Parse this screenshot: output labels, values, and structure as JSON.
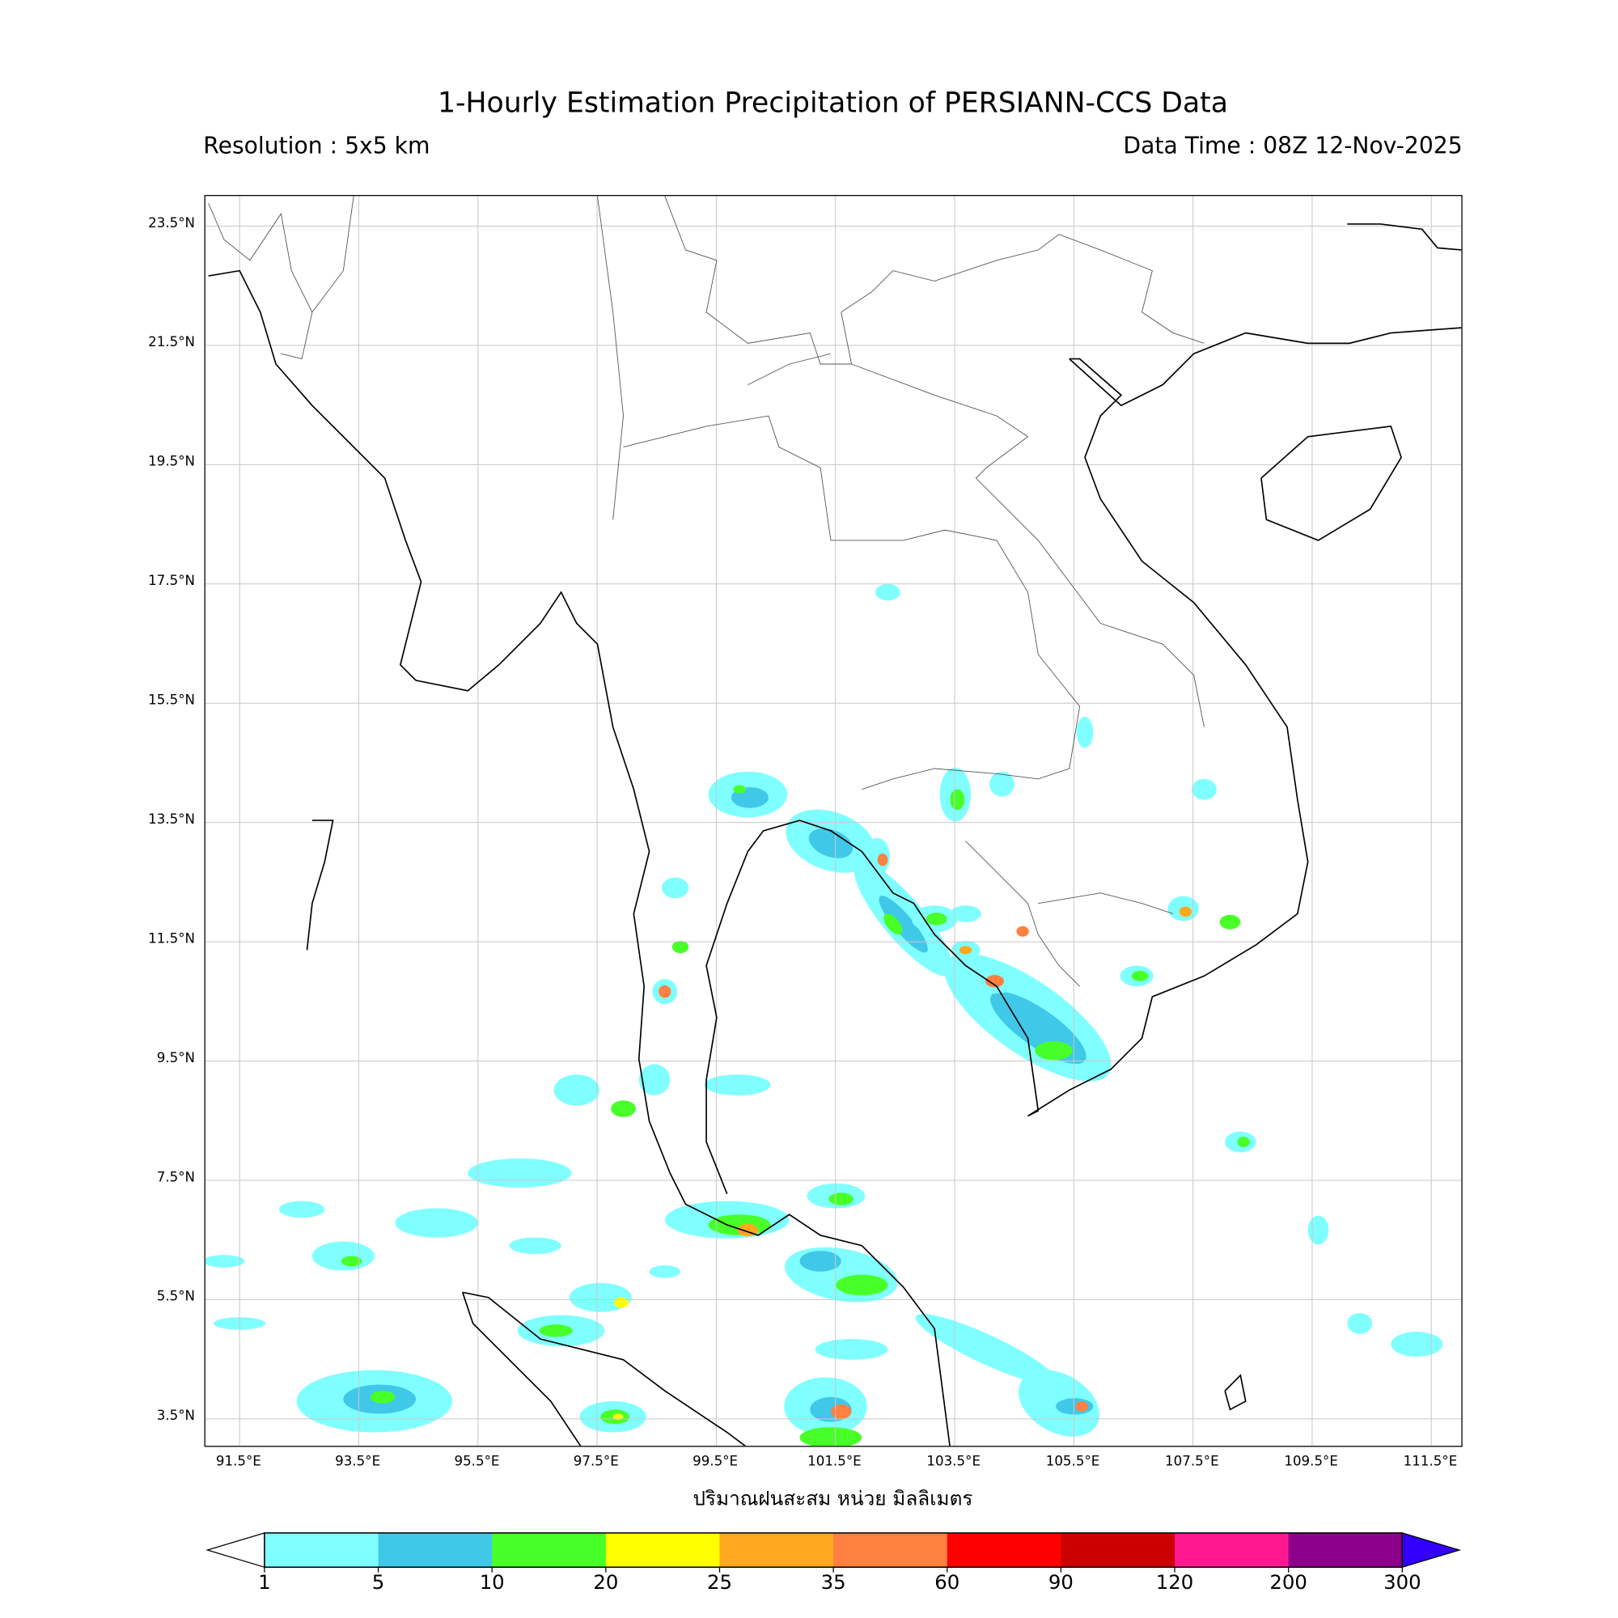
{
  "header": {
    "title": "1-Hourly Estimation Precipitation of PERSIANN-CCS Data",
    "resolution": "Resolution : 5x5 km",
    "data_time": "Data Time : 08Z 12-Nov-2025"
  },
  "map": {
    "lat_ticks": [
      "23.5°N",
      "21.5°N",
      "19.5°N",
      "17.5°N",
      "15.5°N",
      "13.5°N",
      "11.5°N",
      "9.5°N",
      "7.5°N",
      "5.5°N",
      "3.5°N"
    ],
    "lon_ticks": [
      "91.5°E",
      "93.5°E",
      "95.5°E",
      "97.5°E",
      "99.5°E",
      "101.5°E",
      "103.5°E",
      "105.5°E",
      "107.5°E",
      "109.5°E",
      "111.5°E"
    ],
    "lon_range": [
      91,
      112.2
    ],
    "lat_range": [
      2.9,
      24
    ],
    "grid": true
  },
  "colorbar": {
    "label": "ปริมาณฝนสะสม หน่วย มิลลิเมตร",
    "ticks": [
      "1",
      "5",
      "10",
      "20",
      "25",
      "35",
      "60",
      "90",
      "120",
      "200",
      "300"
    ],
    "colors": [
      "#7fffff",
      "#40c8e8",
      "#48ff28",
      "#ffff00",
      "#ffa820",
      "#ff8040",
      "#ff0000",
      "#cc0000",
      "#ff1890",
      "#8c008c"
    ],
    "under_color": "#ffffff",
    "over_color": "#3300ff"
  }
}
